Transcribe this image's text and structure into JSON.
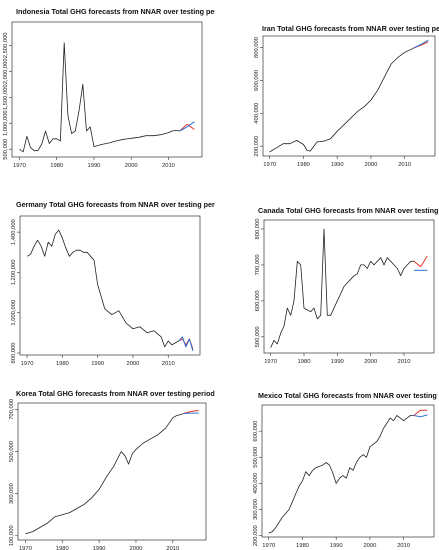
{
  "chart_data": [
    {
      "type": "line",
      "title": "Indonesia Total GHG forecasts from NNAR over testing period",
      "xlabel": "",
      "ylabel": "",
      "xlim": [
        1968,
        2019
      ],
      "ylim": [
        350000,
        2950000
      ],
      "xticks": [
        1970,
        1980,
        1990,
        2000,
        2010
      ],
      "yticks": [
        500000,
        1000000,
        1500000,
        2000000,
        2500000
      ],
      "ytick_labels": [
        "500,000",
        "1,000,000",
        "1,500,000",
        "2,000,000",
        "2,500,000"
      ],
      "series": [
        {
          "color": "#222222",
          "x": [
            1970,
            1971,
            1972,
            1973,
            1974,
            1975,
            1976,
            1977,
            1978,
            1979,
            1980,
            1981,
            1982,
            1983,
            1984,
            1985,
            1986,
            1987,
            1988,
            1989,
            1990,
            1992,
            1994,
            1996,
            1998,
            2000,
            2002,
            2004,
            2006,
            2008,
            2010,
            2011,
            2012,
            2013
          ],
          "y": [
            500000,
            450000,
            750000,
            530000,
            470000,
            480000,
            600000,
            850000,
            610000,
            700000,
            700000,
            660000,
            2550000,
            1150000,
            800000,
            850000,
            1250000,
            1750000,
            850000,
            930000,
            550000,
            590000,
            620000,
            660000,
            690000,
            710000,
            730000,
            760000,
            760000,
            780000,
            820000,
            850000,
            860000,
            850000
          ]
        },
        {
          "color": "#e8372d",
          "x": [
            2013,
            2015,
            2017
          ],
          "y": [
            850000,
            980000,
            880000
          ]
        },
        {
          "color": "#2a6fd6",
          "x": [
            2013,
            2015,
            2017
          ],
          "y": [
            850000,
            930000,
            1030000
          ]
        }
      ]
    },
    {
      "type": "line",
      "title": "Iran Total GHG forecasts from NNAR over testing period",
      "xlabel": "",
      "ylabel": "",
      "xlim": [
        1968,
        2019
      ],
      "ylim": [
        140000,
        870000
      ],
      "xticks": [
        1970,
        1980,
        1990,
        2000,
        2010
      ],
      "yticks": [
        200000,
        400000,
        600000,
        800000
      ],
      "ytick_labels": [
        "200,000",
        "400,000",
        "600,000",
        "800,000"
      ],
      "series": [
        {
          "color": "#222222",
          "x": [
            1970,
            1972,
            1974,
            1976,
            1978,
            1980,
            1981,
            1982,
            1984,
            1986,
            1988,
            1990,
            1992,
            1994,
            1996,
            1998,
            2000,
            2002,
            2004,
            2006,
            2008,
            2010,
            2012,
            2013
          ],
          "y": [
            165000,
            190000,
            215000,
            215000,
            235000,
            210000,
            175000,
            170000,
            225000,
            230000,
            245000,
            290000,
            330000,
            370000,
            410000,
            440000,
            480000,
            540000,
            620000,
            700000,
            740000,
            770000,
            790000,
            800000
          ]
        },
        {
          "color": "#e8372d",
          "x": [
            2013,
            2015,
            2017
          ],
          "y": [
            800000,
            815000,
            835000
          ]
        },
        {
          "color": "#2a6fd6",
          "x": [
            2013,
            2015,
            2017
          ],
          "y": [
            800000,
            820000,
            845000
          ]
        }
      ]
    },
    {
      "type": "line",
      "title": "Germany Total GHG forecasts from NNAR over testing period",
      "xlabel": "",
      "ylabel": "",
      "xlim": [
        1968,
        2019
      ],
      "ylim": [
        790000,
        1480000
      ],
      "xticks": [
        1970,
        1980,
        1990,
        2000,
        2010
      ],
      "yticks": [
        800000,
        1000000,
        1200000,
        1400000
      ],
      "ytick_labels": [
        "800,000",
        "1,000,000",
        "1,200,000",
        "1,400,000"
      ],
      "series": [
        {
          "color": "#222222",
          "x": [
            1970,
            1971,
            1972,
            1973,
            1974,
            1975,
            1976,
            1977,
            1978,
            1979,
            1980,
            1981,
            1982,
            1983,
            1984,
            1985,
            1986,
            1987,
            1988,
            1989,
            1990,
            1991,
            1992,
            1994,
            1996,
            1998,
            2000,
            2002,
            2004,
            2006,
            2008,
            2009,
            2010,
            2011,
            2012,
            2013
          ],
          "y": [
            1280000,
            1290000,
            1330000,
            1360000,
            1330000,
            1280000,
            1350000,
            1330000,
            1390000,
            1410000,
            1370000,
            1320000,
            1280000,
            1300000,
            1310000,
            1310000,
            1300000,
            1300000,
            1280000,
            1260000,
            1140000,
            1080000,
            1020000,
            990000,
            1010000,
            950000,
            920000,
            930000,
            900000,
            910000,
            880000,
            830000,
            860000,
            840000,
            850000,
            860000
          ]
        },
        {
          "color": "#e8372d",
          "x": [
            2013,
            2014,
            2015,
            2016,
            2017
          ],
          "y": [
            860000,
            870000,
            840000,
            870000,
            820000
          ]
        },
        {
          "color": "#2a6fd6",
          "x": [
            2013,
            2014,
            2015,
            2016,
            2017
          ],
          "y": [
            860000,
            880000,
            830000,
            870000,
            810000
          ]
        }
      ]
    },
    {
      "type": "line",
      "title": "Canada Total GHG forecasts from NNAR over testing period",
      "xlabel": "",
      "ylabel": "",
      "xlim": [
        1968,
        2019
      ],
      "ylim": [
        455000,
        825000
      ],
      "xticks": [
        1970,
        1980,
        1990,
        2000,
        2010
      ],
      "yticks": [
        500000,
        600000,
        700000,
        800000
      ],
      "ytick_labels": [
        "500,000",
        "600,000",
        "700,000",
        "800,000"
      ],
      "series": [
        {
          "color": "#222222",
          "x": [
            1970,
            1971,
            1972,
            1973,
            1974,
            1975,
            1976,
            1977,
            1978,
            1979,
            1980,
            1981,
            1982,
            1983,
            1984,
            1985,
            1986,
            1987,
            1988,
            1989,
            1990,
            1991,
            1992,
            1993,
            1994,
            1995,
            1996,
            1997,
            1998,
            1999,
            2000,
            2001,
            2002,
            2003,
            2004,
            2005,
            2006,
            2007,
            2008,
            2009,
            2010,
            2011,
            2012,
            2013
          ],
          "y": [
            470000,
            490000,
            480000,
            510000,
            530000,
            580000,
            560000,
            600000,
            710000,
            700000,
            580000,
            575000,
            570000,
            580000,
            550000,
            560000,
            800000,
            560000,
            560000,
            580000,
            600000,
            620000,
            640000,
            650000,
            660000,
            670000,
            675000,
            700000,
            700000,
            690000,
            710000,
            700000,
            710000,
            720000,
            700000,
            720000,
            710000,
            700000,
            690000,
            670000,
            690000,
            700000,
            710000,
            710000
          ]
        },
        {
          "color": "#e8372d",
          "x": [
            2013,
            2015,
            2017
          ],
          "y": [
            710000,
            695000,
            725000
          ]
        },
        {
          "color": "#2a6fd6",
          "x": [
            2013,
            2015,
            2017
          ],
          "y": [
            685000,
            685000,
            685000
          ]
        }
      ]
    },
    {
      "type": "line",
      "title": "Korea Total GHG forecasts from NNAR over testing period",
      "xlabel": "",
      "ylabel": "",
      "xlim": [
        1968,
        2019
      ],
      "ylim": [
        80000,
        730000
      ],
      "xticks": [
        1970,
        1980,
        1990,
        2000,
        2010
      ],
      "yticks": [
        100000,
        300000,
        500000,
        700000
      ],
      "ytick_labels": [
        "100,000",
        "300,000",
        "500,000",
        "700,000"
      ],
      "series": [
        {
          "color": "#222222",
          "x": [
            1970,
            1972,
            1974,
            1976,
            1978,
            1980,
            1982,
            1984,
            1986,
            1988,
            1990,
            1992,
            1994,
            1996,
            1997,
            1998,
            1999,
            2000,
            2002,
            2004,
            2006,
            2008,
            2010,
            2011,
            2012,
            2013
          ],
          "y": [
            110000,
            120000,
            140000,
            160000,
            190000,
            200000,
            210000,
            230000,
            250000,
            280000,
            320000,
            380000,
            430000,
            500000,
            480000,
            440000,
            490000,
            510000,
            540000,
            560000,
            580000,
            610000,
            660000,
            670000,
            675000,
            680000
          ]
        },
        {
          "color": "#e8372d",
          "x": [
            2013,
            2015,
            2017
          ],
          "y": [
            680000,
            690000,
            695000
          ]
        },
        {
          "color": "#2a6fd6",
          "x": [
            2013,
            2015,
            2017
          ],
          "y": [
            680000,
            682000,
            682000
          ]
        }
      ]
    },
    {
      "type": "line",
      "title": "Mexico Total GHG forecasts from NNAR over testing period",
      "xlabel": "",
      "ylabel": "",
      "xlim": [
        1968,
        2019
      ],
      "ylim": [
        195000,
        700000
      ],
      "xticks": [
        1970,
        1980,
        1990,
        2000,
        2010
      ],
      "yticks": [
        200000,
        300000,
        400000,
        500000,
        600000
      ],
      "ytick_labels": [
        "200,000",
        "300,000",
        "400,000",
        "500,000",
        "600,000"
      ],
      "series": [
        {
          "color": "#222222",
          "x": [
            1970,
            1971,
            1972,
            1973,
            1974,
            1975,
            1976,
            1977,
            1978,
            1979,
            1980,
            1981,
            1982,
            1983,
            1984,
            1985,
            1986,
            1987,
            1988,
            1989,
            1990,
            1991,
            1992,
            1993,
            1994,
            1995,
            1996,
            1997,
            1998,
            1999,
            2000,
            2001,
            2002,
            2003,
            2004,
            2005,
            2006,
            2007,
            2008,
            2009,
            2010,
            2011,
            2012,
            2013
          ],
          "y": [
            210000,
            215000,
            230000,
            250000,
            270000,
            285000,
            300000,
            330000,
            360000,
            390000,
            410000,
            445000,
            430000,
            450000,
            460000,
            465000,
            470000,
            480000,
            470000,
            440000,
            400000,
            420000,
            430000,
            420000,
            460000,
            450000,
            480000,
            500000,
            510000,
            500000,
            540000,
            550000,
            560000,
            580000,
            610000,
            630000,
            650000,
            640000,
            660000,
            650000,
            640000,
            650000,
            660000,
            660000
          ]
        },
        {
          "color": "#e8372d",
          "x": [
            2013,
            2015,
            2017
          ],
          "y": [
            660000,
            680000,
            680000
          ]
        },
        {
          "color": "#2a6fd6",
          "x": [
            2013,
            2015,
            2017
          ],
          "y": [
            660000,
            655000,
            662000
          ]
        }
      ]
    }
  ]
}
